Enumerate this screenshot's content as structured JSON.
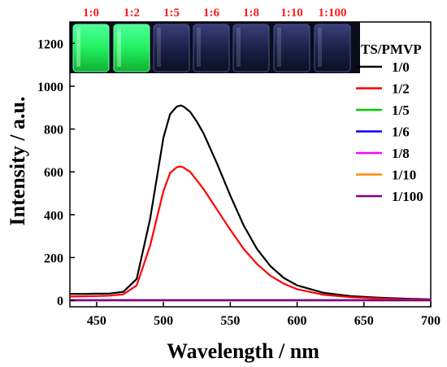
{
  "chart_data": {
    "type": "line",
    "xlabel": "Wavelength / nm",
    "ylabel": "Intensity / a.u.",
    "xlim": [
      430,
      700
    ],
    "ylim": [
      -30,
      1300
    ],
    "xticks": [
      "450",
      "500",
      "550",
      "600",
      "650",
      "700"
    ],
    "yticks": [
      "0",
      "200",
      "400",
      "600",
      "800",
      "1000",
      "1200"
    ],
    "legend_title": "TS/PMVP",
    "legend_placement": "right",
    "grid": false,
    "series": [
      {
        "name": "1/0",
        "color": "#000000",
        "x": [
          430,
          440,
          450,
          460,
          470,
          480,
          490,
          500,
          505,
          510,
          513,
          515,
          520,
          525,
          530,
          540,
          550,
          560,
          570,
          580,
          590,
          600,
          620,
          640,
          660,
          680,
          700
        ],
        "y": [
          30,
          30,
          31,
          32,
          40,
          100,
          380,
          760,
          870,
          905,
          910,
          905,
          880,
          835,
          780,
          640,
          490,
          350,
          240,
          160,
          105,
          70,
          35,
          20,
          13,
          8,
          5
        ]
      },
      {
        "name": "1/2",
        "color": "#ff0000",
        "x": [
          430,
          440,
          450,
          460,
          470,
          480,
          490,
          500,
          505,
          510,
          513,
          515,
          520,
          525,
          530,
          540,
          550,
          560,
          570,
          580,
          590,
          600,
          620,
          640,
          660,
          680,
          700
        ],
        "y": [
          18,
          19,
          20,
          22,
          28,
          70,
          255,
          510,
          595,
          622,
          625,
          620,
          600,
          560,
          520,
          425,
          330,
          240,
          170,
          115,
          78,
          52,
          26,
          15,
          9,
          5,
          3
        ]
      },
      {
        "name": "1/5",
        "color": "#00cc00",
        "x": [
          430,
          700
        ],
        "y": [
          2,
          2
        ]
      },
      {
        "name": "1/6",
        "color": "#0000ff",
        "x": [
          430,
          700
        ],
        "y": [
          1,
          1
        ]
      },
      {
        "name": "1/8",
        "color": "#ff00ff",
        "x": [
          430,
          700
        ],
        "y": [
          1,
          1
        ]
      },
      {
        "name": "1/10",
        "color": "#ff8800",
        "x": [
          430,
          700
        ],
        "y": [
          0,
          0
        ]
      },
      {
        "name": "1/100",
        "color": "#800080",
        "x": [
          430,
          700
        ],
        "y": [
          0,
          0
        ]
      }
    ],
    "inset": {
      "ratios": [
        "1:0",
        "1:2",
        "1:5",
        "1:6",
        "1:8",
        "1:10",
        "1:100"
      ],
      "label_color": "#ff1a1a"
    }
  }
}
